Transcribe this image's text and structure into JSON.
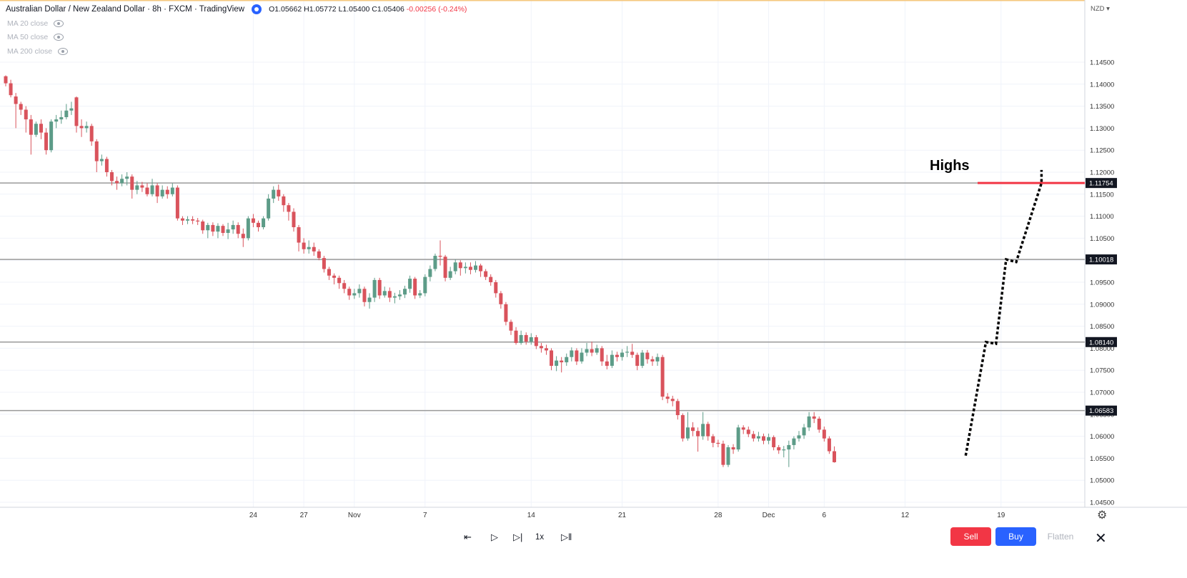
{
  "header": {
    "title": "Australian Dollar / New Zealand Dollar · 8h · FXCM · TradingView",
    "ohlc_o": "O1.05662",
    "ohlc_h": "H1.05772",
    "ohlc_l": "L1.05400",
    "ohlc_c": "C1.05406",
    "change": "-0.00256 (-0.24%)"
  },
  "indicators": [
    {
      "label": "MA 20 close"
    },
    {
      "label": "MA 50 close"
    },
    {
      "label": "MA 200 close"
    }
  ],
  "currency": "NZD",
  "annotation": {
    "label": "Highs"
  },
  "controls": {
    "speed": "1x",
    "sell": "Sell",
    "buy": "Buy",
    "flatten": "Flatten"
  },
  "colors": {
    "up": "#5d9c88",
    "down": "#d9535c",
    "level_line": "#9a9a9a",
    "highs_line": "#f23645",
    "price_tag_bg": "#131722"
  },
  "chart_data": {
    "type": "candlestick",
    "ylim": [
      1.045,
      1.155
    ],
    "yticks": [
      1.145,
      1.14,
      1.135,
      1.13,
      1.125,
      1.12,
      1.115,
      1.11,
      1.105,
      1.1,
      1.095,
      1.09,
      1.085,
      1.08,
      1.075,
      1.07,
      1.065,
      1.06,
      1.055,
      1.05,
      1.045
    ],
    "xticks": [
      {
        "label": "24",
        "index": 49
      },
      {
        "label": "27",
        "index": 59
      },
      {
        "label": "Nov",
        "index": 69
      },
      {
        "label": "7",
        "index": 83
      },
      {
        "label": "14",
        "index": 104
      },
      {
        "label": "21",
        "index": 122
      },
      {
        "label": "28",
        "index": 141
      },
      {
        "label": "Dec",
        "index": 151
      },
      {
        "label": "6",
        "index": 162
      },
      {
        "label": "12",
        "index": 178
      },
      {
        "label": "19",
        "index": 197
      }
    ],
    "horizontal_levels": [
      1.11754,
      1.10018,
      1.0814,
      1.06583
    ],
    "highs_level": 1.11754,
    "projected_path": [
      [
        1.0556,
        190
      ],
      [
        1.0814,
        194
      ],
      [
        1.081,
        196
      ],
      [
        1.10018,
        198
      ],
      [
        1.0996,
        200
      ],
      [
        1.11754,
        205
      ],
      [
        1.1205,
        205
      ]
    ],
    "candles": [
      [
        1.1418,
        1.1402,
        1.142,
        1.1395
      ],
      [
        1.1402,
        1.1375,
        1.141,
        1.137
      ],
      [
        1.1372,
        1.1355,
        1.138,
        1.13
      ],
      [
        1.1355,
        1.1342,
        1.136,
        1.133
      ],
      [
        1.1342,
        1.132,
        1.135,
        1.129
      ],
      [
        1.132,
        1.1285,
        1.133,
        1.124
      ],
      [
        1.1285,
        1.131,
        1.1315,
        1.128
      ],
      [
        1.131,
        1.129,
        1.132,
        1.1275
      ],
      [
        1.129,
        1.125,
        1.13,
        1.124
      ],
      [
        1.125,
        1.1315,
        1.132,
        1.1245
      ],
      [
        1.1315,
        1.132,
        1.133,
        1.13
      ],
      [
        1.132,
        1.1325,
        1.134,
        1.131
      ],
      [
        1.1325,
        1.134,
        1.1355,
        1.132
      ],
      [
        1.134,
        1.1345,
        1.136,
        1.133
      ],
      [
        1.137,
        1.1305,
        1.1372,
        1.129
      ],
      [
        1.1305,
        1.13,
        1.132,
        1.128
      ],
      [
        1.13,
        1.1305,
        1.1315,
        1.129
      ],
      [
        1.1305,
        1.127,
        1.131,
        1.126
      ],
      [
        1.127,
        1.1225,
        1.1275,
        1.12
      ],
      [
        1.1225,
        1.123,
        1.124,
        1.1215
      ],
      [
        1.123,
        1.12,
        1.1235,
        1.119
      ],
      [
        1.12,
        1.118,
        1.1205,
        1.117
      ],
      [
        1.118,
        1.1175,
        1.119,
        1.116
      ],
      [
        1.1175,
        1.1185,
        1.1195,
        1.1168
      ],
      [
        1.1185,
        1.119,
        1.12,
        1.117
      ],
      [
        1.119,
        1.116,
        1.1195,
        1.114
      ],
      [
        1.116,
        1.117,
        1.118,
        1.115
      ],
      [
        1.117,
        1.1165,
        1.1178,
        1.1155
      ],
      [
        1.1165,
        1.115,
        1.1175,
        1.1145
      ],
      [
        1.115,
        1.117,
        1.1185,
        1.1145
      ],
      [
        1.117,
        1.1145,
        1.1175,
        1.113
      ],
      [
        1.1145,
        1.116,
        1.117,
        1.114
      ],
      [
        1.116,
        1.115,
        1.1168,
        1.114
      ],
      [
        1.115,
        1.1165,
        1.1175,
        1.1145
      ],
      [
        1.1165,
        1.1095,
        1.117,
        1.109
      ],
      [
        1.1095,
        1.109,
        1.11,
        1.108
      ],
      [
        1.109,
        1.1093,
        1.11,
        1.1082
      ],
      [
        1.1093,
        1.109,
        1.11,
        1.1082
      ],
      [
        1.109,
        1.1088,
        1.1096,
        1.108
      ],
      [
        1.1088,
        1.1068,
        1.1092,
        1.106
      ],
      [
        1.1068,
        1.108,
        1.1085,
        1.105
      ],
      [
        1.108,
        1.1065,
        1.1086,
        1.1055
      ],
      [
        1.1065,
        1.1078,
        1.1084,
        1.105
      ],
      [
        1.1078,
        1.1062,
        1.1082,
        1.1055
      ],
      [
        1.1062,
        1.107,
        1.1085,
        1.1048
      ],
      [
        1.107,
        1.108,
        1.109,
        1.106
      ],
      [
        1.108,
        1.106,
        1.1086,
        1.105
      ],
      [
        1.106,
        1.105,
        1.1072,
        1.103
      ],
      [
        1.105,
        1.1095,
        1.11,
        1.1045
      ],
      [
        1.1095,
        1.1085,
        1.1105,
        1.1075
      ],
      [
        1.1085,
        1.1075,
        1.109,
        1.1065
      ],
      [
        1.1075,
        1.1095,
        1.11,
        1.107
      ],
      [
        1.1095,
        1.114,
        1.115,
        1.109
      ],
      [
        1.114,
        1.116,
        1.1168,
        1.113
      ],
      [
        1.116,
        1.1145,
        1.1172,
        1.1135
      ],
      [
        1.1145,
        1.1125,
        1.115,
        1.111
      ],
      [
        1.1125,
        1.111,
        1.113,
        1.109
      ],
      [
        1.111,
        1.1075,
        1.1118,
        1.1065
      ],
      [
        1.1075,
        1.104,
        1.108,
        1.102
      ],
      [
        1.104,
        1.1025,
        1.105,
        1.1015
      ],
      [
        1.1025,
        1.103,
        1.1045,
        1.1015
      ],
      [
        1.103,
        1.102,
        1.104,
        1.101
      ],
      [
        1.102,
        1.1005,
        1.1025,
        1.1
      ],
      [
        1.1005,
        1.098,
        1.101,
        1.0972
      ],
      [
        1.098,
        1.0965,
        1.0985,
        1.0955
      ],
      [
        1.0965,
        1.096,
        1.097,
        1.0945
      ],
      [
        1.096,
        1.0948,
        1.0965,
        1.0935
      ],
      [
        1.0948,
        1.0935,
        1.0955,
        1.0925
      ],
      [
        1.0935,
        1.092,
        1.094,
        1.091
      ],
      [
        1.092,
        1.0925,
        1.0935,
        1.0912
      ],
      [
        1.0925,
        1.0935,
        1.0945,
        1.0915
      ],
      [
        1.0935,
        1.0905,
        1.094,
        1.0895
      ],
      [
        1.0905,
        1.0915,
        1.0925,
        1.089
      ],
      [
        1.0915,
        1.0955,
        1.096,
        1.0905
      ],
      [
        1.0955,
        1.092,
        1.096,
        1.0912
      ],
      [
        1.092,
        1.093,
        1.094,
        1.0915
      ],
      [
        1.093,
        1.0915,
        1.0938,
        1.0905
      ],
      [
        1.0915,
        1.0918,
        1.0926,
        1.0902
      ],
      [
        1.0918,
        1.0922,
        1.0932,
        1.091
      ],
      [
        1.0922,
        1.0935,
        1.0942,
        1.0914
      ],
      [
        1.0935,
        1.0958,
        1.0965,
        1.0926
      ],
      [
        1.0958,
        1.092,
        1.0962,
        1.0912
      ],
      [
        1.092,
        1.0925,
        1.0932,
        1.0914
      ],
      [
        1.0925,
        1.0962,
        1.0968,
        1.0918
      ],
      [
        1.0962,
        1.098,
        1.0988,
        1.0952
      ],
      [
        1.098,
        1.101,
        1.1015,
        1.0975
      ],
      [
        1.101,
        1.1008,
        1.1045,
        1.0988
      ],
      [
        1.1008,
        1.096,
        1.1012,
        1.0952
      ],
      [
        1.096,
        1.0975,
        1.0985,
        1.0955
      ],
      [
        1.0975,
        1.0995,
        1.1002,
        1.0968
      ],
      [
        1.0995,
        1.0982,
        1.1,
        1.0965
      ],
      [
        1.0982,
        1.0985,
        1.0995,
        1.097
      ],
      [
        1.0985,
        1.0978,
        1.0995,
        1.0968
      ],
      [
        1.0978,
        1.0988,
        1.0998,
        1.0972
      ],
      [
        1.0988,
        1.0975,
        1.0992,
        1.0962
      ],
      [
        1.0975,
        1.0962,
        1.098,
        1.0955
      ],
      [
        1.0962,
        1.095,
        1.0968,
        1.0942
      ],
      [
        1.095,
        1.0925,
        1.0955,
        1.0915
      ],
      [
        1.0925,
        1.09,
        1.093,
        1.089
      ],
      [
        1.09,
        1.086,
        1.0905,
        1.0852
      ],
      [
        1.086,
        1.084,
        1.0865,
        1.083
      ],
      [
        1.084,
        1.0812,
        1.0848,
        1.0808
      ],
      [
        1.0812,
        1.083,
        1.084,
        1.0808
      ],
      [
        1.083,
        1.0815,
        1.0836,
        1.0808
      ],
      [
        1.0815,
        1.0825,
        1.0834,
        1.0808
      ],
      [
        1.0825,
        1.0805,
        1.083,
        1.0798
      ],
      [
        1.0805,
        1.08,
        1.0812,
        1.079
      ],
      [
        1.08,
        1.0795,
        1.0808,
        1.0785
      ],
      [
        1.0795,
        1.076,
        1.08,
        1.075
      ],
      [
        1.076,
        1.0772,
        1.0782,
        1.0748
      ],
      [
        1.0772,
        1.0768,
        1.078,
        1.0745
      ],
      [
        1.0768,
        1.078,
        1.0788,
        1.076
      ],
      [
        1.078,
        1.0795,
        1.0802,
        1.077
      ],
      [
        1.0795,
        1.077,
        1.08,
        1.0762
      ],
      [
        1.077,
        1.079,
        1.08,
        1.0765
      ],
      [
        1.079,
        1.0798,
        1.0812,
        1.0782
      ],
      [
        1.0798,
        1.079,
        1.0815,
        1.0782
      ],
      [
        1.079,
        1.08,
        1.0808,
        1.0785
      ],
      [
        1.08,
        1.077,
        1.0805,
        1.076
      ],
      [
        1.077,
        1.076,
        1.0785,
        1.0752
      ],
      [
        1.076,
        1.0785,
        1.0795,
        1.0755
      ],
      [
        1.0785,
        1.078,
        1.0792,
        1.077
      ],
      [
        1.078,
        1.079,
        1.0798,
        1.0772
      ],
      [
        1.079,
        1.0792,
        1.0805,
        1.078
      ],
      [
        1.0792,
        1.0785,
        1.081,
        1.0778
      ],
      [
        1.0785,
        1.076,
        1.079,
        1.075
      ],
      [
        1.076,
        1.079,
        1.0796,
        1.0755
      ],
      [
        1.079,
        1.0775,
        1.0796,
        1.0765
      ],
      [
        1.0775,
        1.077,
        1.0782,
        1.076
      ],
      [
        1.077,
        1.078,
        1.0788,
        1.076
      ],
      [
        1.078,
        1.069,
        1.0785,
        1.0682
      ],
      [
        1.069,
        1.0685,
        1.0698,
        1.0675
      ],
      [
        1.0685,
        1.068,
        1.0692,
        1.0668
      ],
      [
        1.068,
        1.0648,
        1.0685,
        1.0638
      ],
      [
        1.0648,
        1.0595,
        1.0652,
        1.0588
      ],
      [
        1.0595,
        1.062,
        1.0655,
        1.059
      ],
      [
        1.062,
        1.0612,
        1.0632,
        1.06
      ],
      [
        1.0612,
        1.06,
        1.062,
        1.0565
      ],
      [
        1.06,
        1.0628,
        1.0655,
        1.0592
      ],
      [
        1.0628,
        1.06,
        1.0633,
        1.059
      ],
      [
        1.06,
        1.0585,
        1.0605,
        1.0575
      ],
      [
        1.0585,
        1.0583,
        1.0592,
        1.0575
      ],
      [
        1.0583,
        1.0535,
        1.059,
        1.053
      ],
      [
        1.0535,
        1.0575,
        1.058,
        1.053
      ],
      [
        1.0575,
        1.057,
        1.0582,
        1.056
      ],
      [
        1.057,
        1.062,
        1.0626,
        1.0565
      ],
      [
        1.062,
        1.0615,
        1.0625,
        1.0605
      ],
      [
        1.0615,
        1.0605,
        1.0622,
        1.0598
      ],
      [
        1.0605,
        1.0595,
        1.0612,
        1.0588
      ],
      [
        1.0595,
        1.06,
        1.061,
        1.0588
      ],
      [
        1.06,
        1.059,
        1.0606,
        1.0582
      ],
      [
        1.059,
        1.0598,
        1.0606,
        1.0582
      ],
      [
        1.0598,
        1.0575,
        1.0602,
        1.0568
      ],
      [
        1.0575,
        1.0568,
        1.058,
        1.056
      ],
      [
        1.0568,
        1.057,
        1.0578,
        1.0552
      ],
      [
        1.057,
        1.058,
        1.059,
        1.053
      ],
      [
        1.058,
        1.0595,
        1.06,
        1.057
      ],
      [
        1.0595,
        1.0602,
        1.0612,
        1.0588
      ],
      [
        1.0602,
        1.062,
        1.0628,
        1.0594
      ],
      [
        1.062,
        1.0645,
        1.0655,
        1.0612
      ],
      [
        1.0645,
        1.064,
        1.0655,
        1.063
      ],
      [
        1.064,
        1.0615,
        1.0645,
        1.0608
      ],
      [
        1.0615,
        1.0595,
        1.0622,
        1.0588
      ],
      [
        1.0595,
        1.0566,
        1.06,
        1.056
      ],
      [
        1.0566,
        1.0541,
        1.0577,
        1.054
      ]
    ]
  }
}
